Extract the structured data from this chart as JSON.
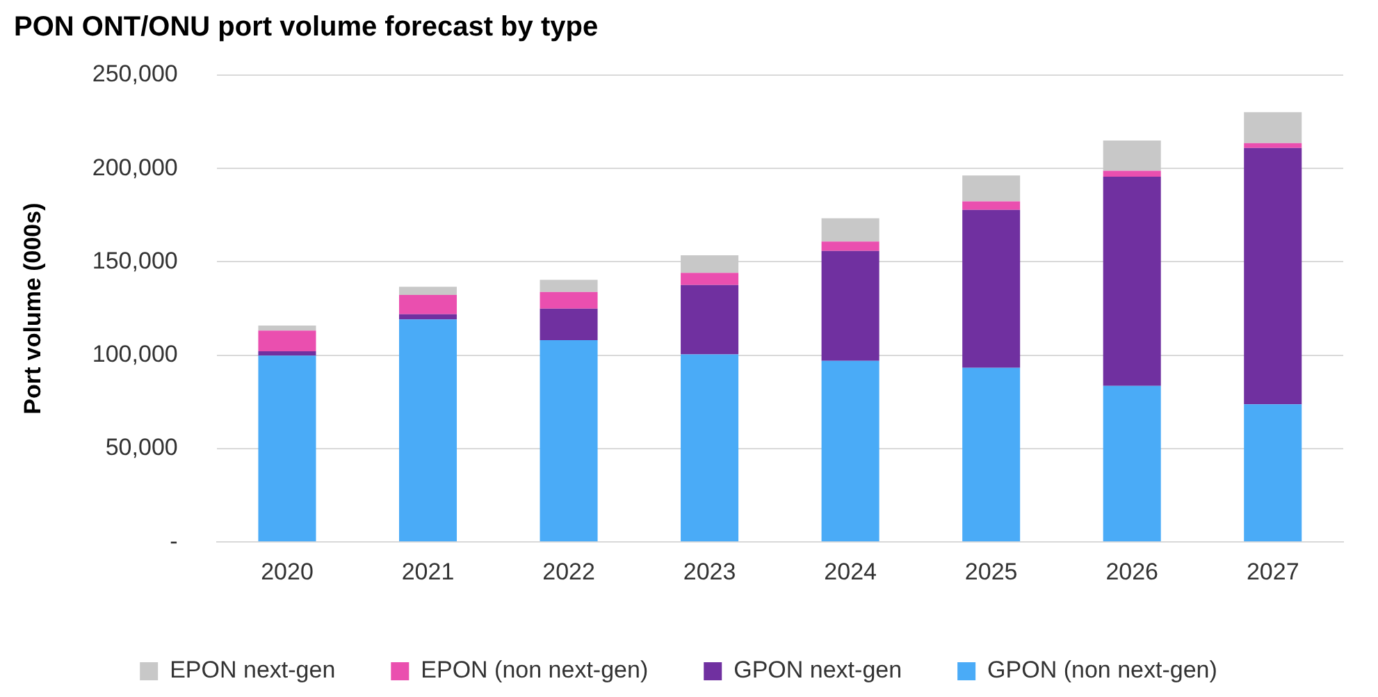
{
  "chart_data": {
    "type": "bar",
    "title": "PON ONT/ONU port volume forecast by type",
    "ylabel": "Port volume (000s)",
    "categories": [
      "2020",
      "2021",
      "2022",
      "2023",
      "2024",
      "2025",
      "2026",
      "2027"
    ],
    "stacked": true,
    "series": [
      {
        "name": "GPON (non next-gen)",
        "color": "#4aabf7",
        "values": [
          99800,
          119200,
          108100,
          100500,
          97000,
          93300,
          83600,
          73700
        ]
      },
      {
        "name": "GPON next-gen",
        "color": "#7030a0",
        "values": [
          2300,
          2800,
          16800,
          37100,
          58900,
          84500,
          112000,
          137300
        ]
      },
      {
        "name": "EPON (non next-gen)",
        "color": "#ea4faf",
        "values": [
          11100,
          10300,
          9000,
          6500,
          5000,
          4600,
          3200,
          2600
        ]
      },
      {
        "name": "EPON next-gen",
        "color": "#c8c8c8",
        "values": [
          2700,
          4400,
          6500,
          9400,
          12500,
          13900,
          16200,
          16600
        ]
      }
    ],
    "ylim": [
      0,
      250000
    ],
    "yticks": [
      {
        "value": 0,
        "label": "-"
      },
      {
        "value": 50000,
        "label": "50,000"
      },
      {
        "value": 100000,
        "label": "100,000"
      },
      {
        "value": 150000,
        "label": "150,000"
      },
      {
        "value": 200000,
        "label": "200,000"
      },
      {
        "value": 250000,
        "label": "250,000"
      }
    ],
    "grid": "y",
    "legend": "bottom"
  }
}
